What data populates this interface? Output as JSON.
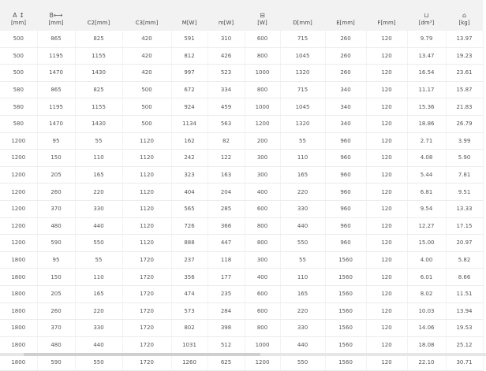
{
  "headers": [
    {
      "top": "A ↕",
      "unit": "[mm]",
      "icon": "height-arrow-icon"
    },
    {
      "top": "B⟷",
      "unit": "[mm]",
      "icon": "width-arrow-icon"
    },
    {
      "top": "",
      "unit": "C2[mm]"
    },
    {
      "top": "",
      "unit": "C3[mm]"
    },
    {
      "top": "",
      "unit": "M[W]"
    },
    {
      "top": "",
      "unit": "m[W]"
    },
    {
      "top": "⊟",
      "unit": "[W]",
      "icon": "power-box-icon"
    },
    {
      "top": "",
      "unit": "D[mm]"
    },
    {
      "top": "",
      "unit": "E[mm]"
    },
    {
      "top": "",
      "unit": "F[mm]"
    },
    {
      "top": "⊔",
      "unit": "[dm³]",
      "icon": "volume-container-icon"
    },
    {
      "top": "⌂",
      "unit": "[kg]",
      "icon": "weight-icon"
    }
  ],
  "rows": [
    [
      "500",
      "865",
      "825",
      "420",
      "591",
      "310",
      "600",
      "715",
      "260",
      "120",
      "9.79",
      "13.97"
    ],
    [
      "500",
      "1195",
      "1155",
      "420",
      "812",
      "426",
      "800",
      "1045",
      "260",
      "120",
      "13.47",
      "19.23"
    ],
    [
      "500",
      "1470",
      "1430",
      "420",
      "997",
      "523",
      "1000",
      "1320",
      "260",
      "120",
      "16.54",
      "23.61"
    ],
    [
      "580",
      "865",
      "825",
      "500",
      "672",
      "334",
      "800",
      "715",
      "340",
      "120",
      "11.17",
      "15.87"
    ],
    [
      "580",
      "1195",
      "1155",
      "500",
      "924",
      "459",
      "1000",
      "1045",
      "340",
      "120",
      "15.36",
      "21.83"
    ],
    [
      "580",
      "1470",
      "1430",
      "500",
      "1134",
      "563",
      "1200",
      "1320",
      "340",
      "120",
      "18.86",
      "26.79"
    ],
    [
      "1200",
      "95",
      "55",
      "1120",
      "162",
      "82",
      "200",
      "55",
      "960",
      "120",
      "2.71",
      "3.99"
    ],
    [
      "1200",
      "150",
      "110",
      "1120",
      "242",
      "122",
      "300",
      "110",
      "960",
      "120",
      "4.08",
      "5.90"
    ],
    [
      "1200",
      "205",
      "165",
      "1120",
      "323",
      "163",
      "300",
      "165",
      "960",
      "120",
      "5.44",
      "7.81"
    ],
    [
      "1200",
      "260",
      "220",
      "1120",
      "404",
      "204",
      "400",
      "220",
      "960",
      "120",
      "6.81",
      "9.51"
    ],
    [
      "1200",
      "370",
      "330",
      "1120",
      "565",
      "285",
      "600",
      "330",
      "960",
      "120",
      "9.54",
      "13.33"
    ],
    [
      "1200",
      "480",
      "440",
      "1120",
      "726",
      "366",
      "800",
      "440",
      "960",
      "120",
      "12.27",
      "17.15"
    ],
    [
      "1200",
      "590",
      "550",
      "1120",
      "888",
      "447",
      "800",
      "550",
      "960",
      "120",
      "15.00",
      "20.97"
    ],
    [
      "1800",
      "95",
      "55",
      "1720",
      "237",
      "118",
      "300",
      "55",
      "1560",
      "120",
      "4.00",
      "5.82"
    ],
    [
      "1800",
      "150",
      "110",
      "1720",
      "356",
      "177",
      "400",
      "110",
      "1560",
      "120",
      "6.01",
      "8.66"
    ],
    [
      "1800",
      "205",
      "165",
      "1720",
      "474",
      "235",
      "600",
      "165",
      "1560",
      "120",
      "8.02",
      "11.51"
    ],
    [
      "1800",
      "260",
      "220",
      "1720",
      "573",
      "284",
      "600",
      "220",
      "1560",
      "120",
      "10.03",
      "13.94"
    ],
    [
      "1800",
      "370",
      "330",
      "1720",
      "802",
      "398",
      "800",
      "330",
      "1560",
      "120",
      "14.06",
      "19.53"
    ],
    [
      "1800",
      "480",
      "440",
      "1720",
      "1031",
      "512",
      "1000",
      "440",
      "1560",
      "120",
      "18.08",
      "25.12"
    ],
    [
      "1800",
      "590",
      "550",
      "1720",
      "1260",
      "625",
      "1200",
      "550",
      "1560",
      "120",
      "22.10",
      "30.71"
    ]
  ]
}
